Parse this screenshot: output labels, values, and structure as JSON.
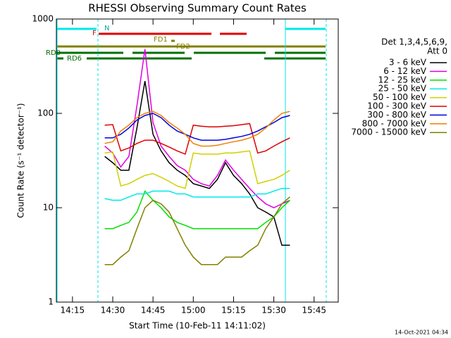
{
  "chart_data": {
    "type": "line",
    "title": "RHESSI Observing Summary Count Rates",
    "x_label": "Start Time (10-Feb-11 14:11:02)",
    "y_label": "Count Rate (s⁻¹ detector⁻¹)",
    "legend_header": [
      "Det 1,3,4,5,6,9,",
      "Att 0"
    ],
    "footer": "14-Oct-2021 04:34",
    "annotations": [
      "N",
      "F",
      "FD1",
      "FD2",
      "RD0",
      "RD6"
    ],
    "ylog": true,
    "ylim": [
      1,
      1000
    ],
    "yticks": [
      1,
      10,
      100,
      1000
    ],
    "xlim": [
      "14:09",
      "15:54"
    ],
    "xticks": [
      "14:15",
      "14:30",
      "14:45",
      "15:00",
      "15:15",
      "15:30",
      "15:45"
    ],
    "x": [
      "14:27",
      "14:30",
      "14:33",
      "14:36",
      "14:39",
      "14:42",
      "14:45",
      "14:48",
      "14:51",
      "14:54",
      "14:57",
      "15:00",
      "15:03",
      "15:06",
      "15:09",
      "15:12",
      "15:15",
      "15:18",
      "15:21",
      "15:24",
      "15:27",
      "15:30",
      "15:33",
      "15:36"
    ],
    "series": [
      {
        "name": "3 - 6 keV",
        "color": "#000000",
        "values": [
          35,
          30,
          25,
          25,
          70,
          220,
          60,
          40,
          30,
          25,
          22,
          18,
          17,
          16,
          20,
          30,
          22,
          18,
          14,
          10,
          9,
          8,
          4,
          4
        ]
      },
      {
        "name": "6 - 12 keV",
        "color": "#e000e0",
        "values": [
          45,
          38,
          27,
          35,
          120,
          480,
          80,
          45,
          35,
          28,
          25,
          20,
          18,
          17,
          22,
          32,
          25,
          20,
          16,
          13,
          11,
          10,
          11,
          12
        ]
      },
      {
        "name": "12 - 25 keV",
        "color": "#00e000",
        "values": [
          6,
          6,
          6.5,
          7,
          9,
          15,
          12,
          10,
          8,
          7,
          6.5,
          6,
          6,
          6,
          6,
          6,
          6,
          6,
          6,
          6,
          7,
          8,
          10,
          12
        ]
      },
      {
        "name": "25 - 50 keV",
        "color": "#00e8e8",
        "values": [
          12.5,
          12,
          12,
          13,
          14,
          14,
          15,
          15,
          15,
          14,
          14,
          13,
          13,
          13,
          13,
          13,
          13,
          13,
          13,
          14,
          14,
          15,
          16,
          16
        ]
      },
      {
        "name": "50 - 100 keV",
        "color": "#d0d000",
        "values": [
          38,
          39,
          17,
          18,
          20,
          22,
          23,
          21,
          19,
          17,
          16,
          38,
          37,
          37,
          37,
          38,
          38,
          39,
          40,
          18,
          19,
          20,
          22,
          25
        ]
      },
      {
        "name": "100 - 300 keV",
        "color": "#e00000",
        "values": [
          75,
          76,
          40,
          43,
          48,
          52,
          52,
          48,
          44,
          40,
          37,
          75,
          73,
          72,
          72,
          73,
          74,
          76,
          78,
          38,
          40,
          45,
          50,
          55
        ]
      },
      {
        "name": "300 - 800 keV",
        "color": "#0000e0",
        "values": [
          55,
          55,
          60,
          70,
          85,
          95,
          100,
          90,
          75,
          65,
          60,
          55,
          52,
          52,
          52,
          53,
          55,
          57,
          60,
          65,
          72,
          80,
          90,
          95
        ]
      },
      {
        "name": "800 - 7000 keV",
        "color": "#f08000",
        "values": [
          48,
          50,
          65,
          75,
          90,
          100,
          105,
          95,
          80,
          70,
          60,
          48,
          45,
          45,
          46,
          48,
          50,
          52,
          55,
          60,
          70,
          85,
          100,
          105
        ]
      },
      {
        "name": "7000 - 15000 keV",
        "color": "#808000",
        "values": [
          2.5,
          2.5,
          3,
          3.5,
          6,
          10,
          12,
          11,
          9,
          6,
          4,
          3,
          2.5,
          2.5,
          2.5,
          3,
          3,
          3,
          3.5,
          4,
          6,
          8,
          11,
          13
        ]
      }
    ]
  }
}
